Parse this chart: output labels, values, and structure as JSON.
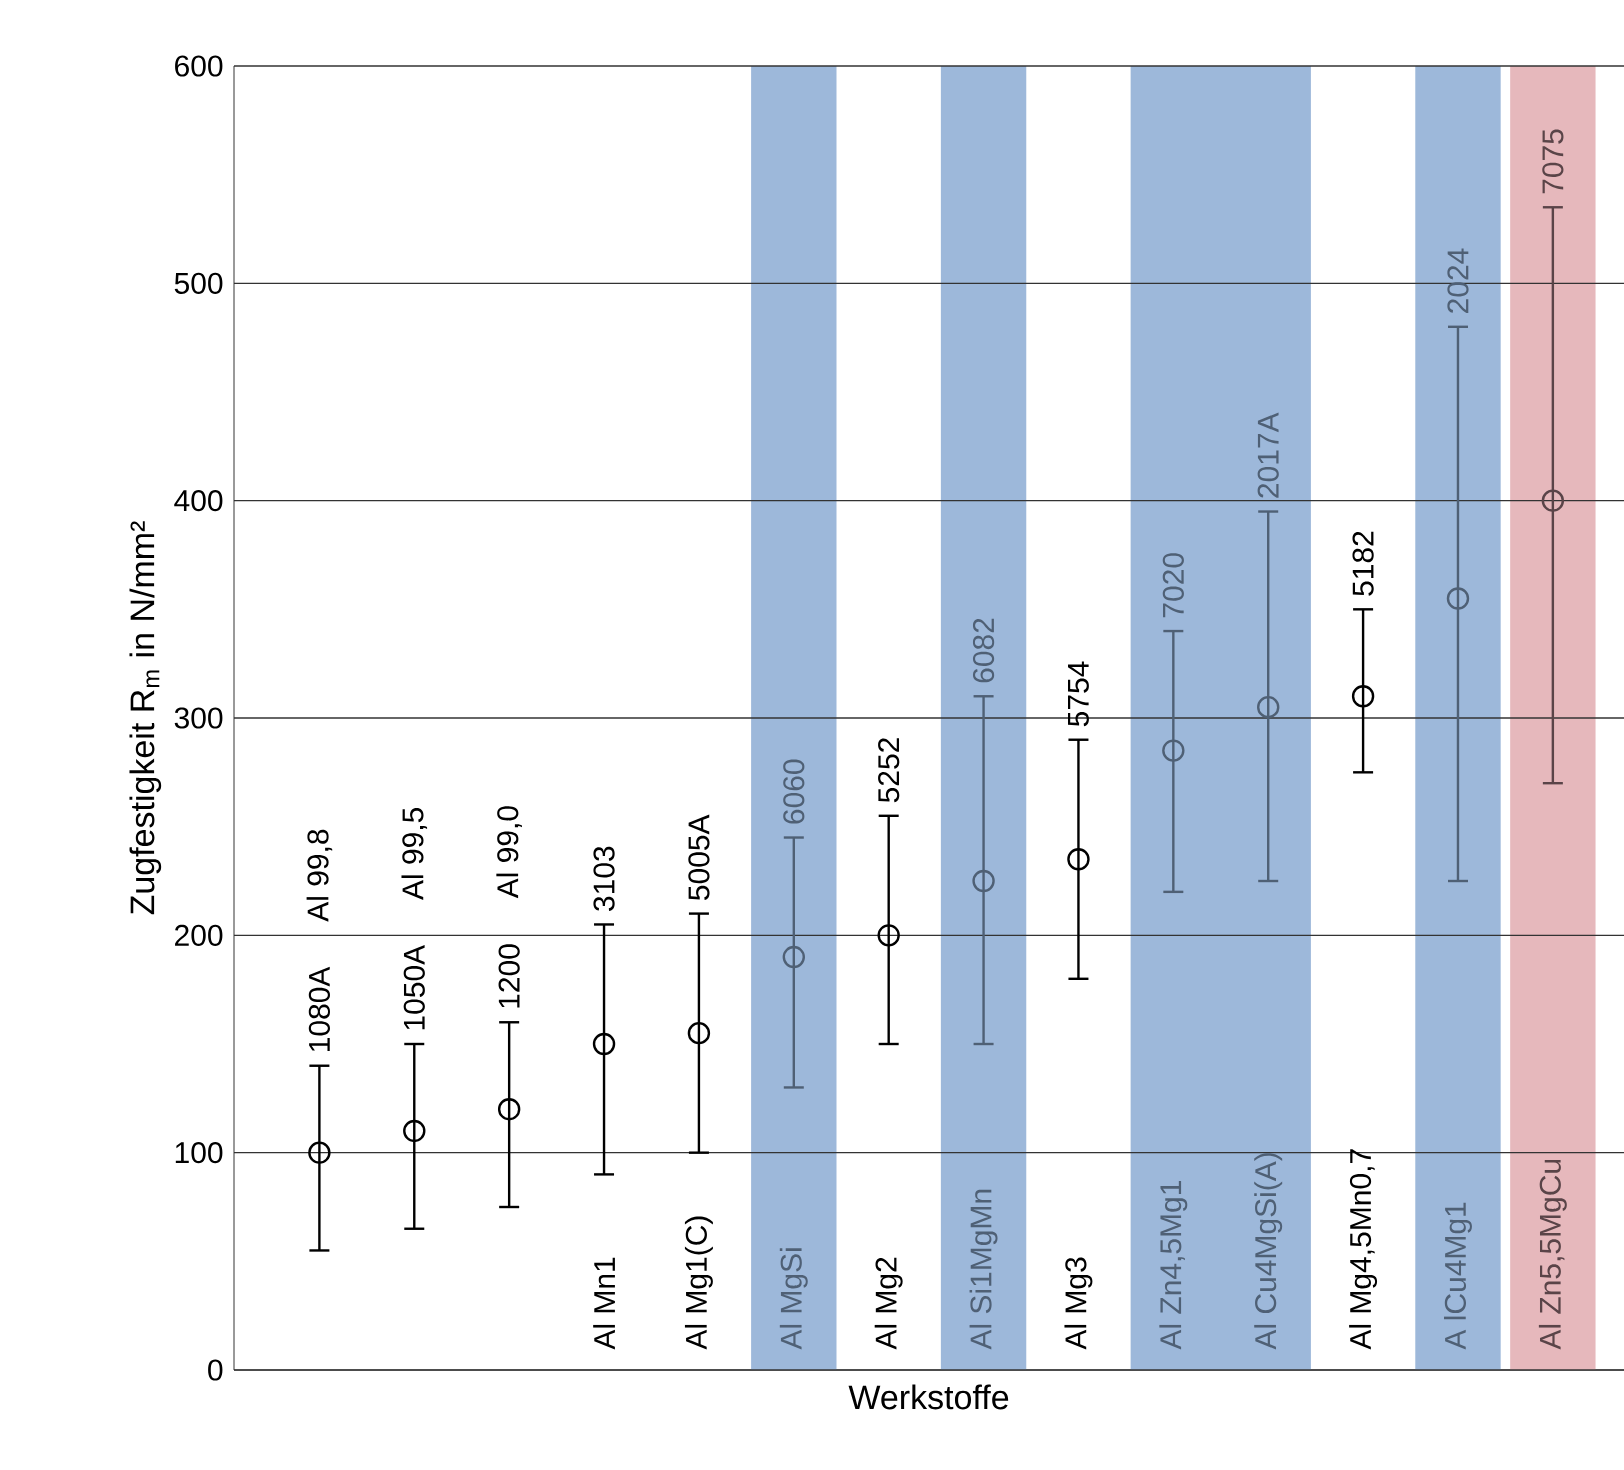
{
  "chart_data": {
    "type": "scatter",
    "xlabel": "Werkstoffe",
    "ylabel": "Zugfestigkeit R$_{m}$ in N/mm²",
    "categories": [
      "1080A",
      "1050A",
      "1200",
      "3103",
      "5005A",
      "6060",
      "5252",
      "6082",
      "5754",
      "7020",
      "2017A",
      "5182",
      "2024",
      "7075"
    ],
    "values": [
      100,
      110,
      120,
      150,
      155,
      190,
      200,
      225,
      235,
      285,
      305,
      310,
      355,
      400
    ],
    "errors": [
      [
        55,
        140
      ],
      [
        65,
        150
      ],
      [
        75,
        160
      ],
      [
        90,
        205
      ],
      [
        100,
        210
      ],
      [
        130,
        245
      ],
      [
        150,
        255
      ],
      [
        150,
        310
      ],
      [
        180,
        290
      ],
      [
        220,
        340
      ],
      [
        225,
        395
      ],
      [
        275,
        350
      ],
      [
        225,
        480
      ],
      [
        270,
        535
      ]
    ],
    "colors": [
      "#000000",
      "#000000",
      "#000000",
      "#000000",
      "#000000",
      "#4f6075",
      "#000000",
      "#4f6075",
      "#000000",
      "#4f6075",
      "#4f6075",
      "#000000",
      "#4f6075",
      "#5a4448"
    ],
    "marker": "circle",
    "grid": "y",
    "ylim": [
      0,
      600
    ],
    "yticks": [
      0,
      100,
      200,
      300,
      400,
      500,
      600
    ],
    "bands": [
      {
        "axis": "x",
        "from": "6060",
        "to": "6060",
        "color": "#9db8da"
      },
      {
        "axis": "x",
        "from": "6082",
        "to": "6082",
        "color": "#9db8da"
      },
      {
        "axis": "x",
        "from": "7020",
        "to": "2017A",
        "color": "#9db8da"
      },
      {
        "axis": "x",
        "from": "2024",
        "to": "2024",
        "color": "#9db8da"
      },
      {
        "axis": "x",
        "from": "7075",
        "to": "7075",
        "color": "#e6b8bc"
      }
    ],
    "annotations": [
      "Al 99,8",
      "Al 99,5",
      "Al 99,0",
      "Al Mn1",
      "Al Mg1(C)",
      "Al MgSi",
      "Al Mg2",
      "Al Si1MgMn",
      "Al Mg3",
      "Al Zn4,5Mg1",
      "Al Cu4MgSi(A)",
      "Al Mg4,5Mn0,7",
      "A lCu4Mg1",
      "Al Zn5,5MgCu"
    ]
  }
}
